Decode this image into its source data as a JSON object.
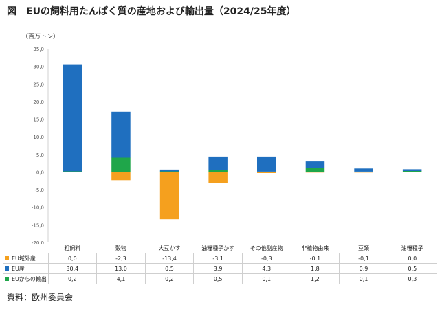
{
  "title": "図　EUの飼料用たんぱく質の産地および輸出量（2024/25年度）",
  "unit_label": "（百万トン）",
  "source": "資料：欧州委員会",
  "colors": {
    "imports": "#F5A01E",
    "eu_production": "#1F6FBF",
    "eu_exports": "#1FA64A"
  },
  "chart_data": {
    "type": "bar",
    "stacked": true,
    "ylim": [
      -20,
      35
    ],
    "yticks": [
      "35,0",
      "30,0",
      "25,0",
      "20,0",
      "15,0",
      "10,0",
      "5,0",
      "0,0",
      "-5,0",
      "-10,0",
      "-15,0",
      "-20,0"
    ],
    "categories": [
      "粗飼料",
      "穀物",
      "大豆かす",
      "油糧種子かす",
      "その他副産物",
      "非植物由来",
      "豆類",
      "油糧種子"
    ],
    "series": [
      {
        "name": "EU域外産",
        "color": "#F5A01E",
        "values": [
          0.0,
          -2.3,
          -13.4,
          -3.1,
          -0.3,
          -0.1,
          -0.1,
          0.0
        ],
        "labels": [
          "0,0",
          "-2,3",
          "-13,4",
          "-3,1",
          "-0,3",
          "-0,1",
          "-0,1",
          "0,0"
        ]
      },
      {
        "name": "EU産",
        "color": "#1F6FBF",
        "values": [
          30.4,
          13.0,
          0.5,
          3.9,
          4.3,
          1.8,
          0.9,
          0.5
        ],
        "labels": [
          "30,4",
          "13,0",
          "0,5",
          "3,9",
          "4,3",
          "1,8",
          "0,9",
          "0,5"
        ]
      },
      {
        "name": "EUからの輸出",
        "color": "#1FA64A",
        "values": [
          0.2,
          4.1,
          0.2,
          0.5,
          0.1,
          1.2,
          0.1,
          0.3
        ],
        "labels": [
          "0,2",
          "4,1",
          "0,2",
          "0,5",
          "0,1",
          "1,2",
          "0,1",
          "0,3"
        ]
      }
    ],
    "grid": false,
    "legend": "data-table-left"
  }
}
